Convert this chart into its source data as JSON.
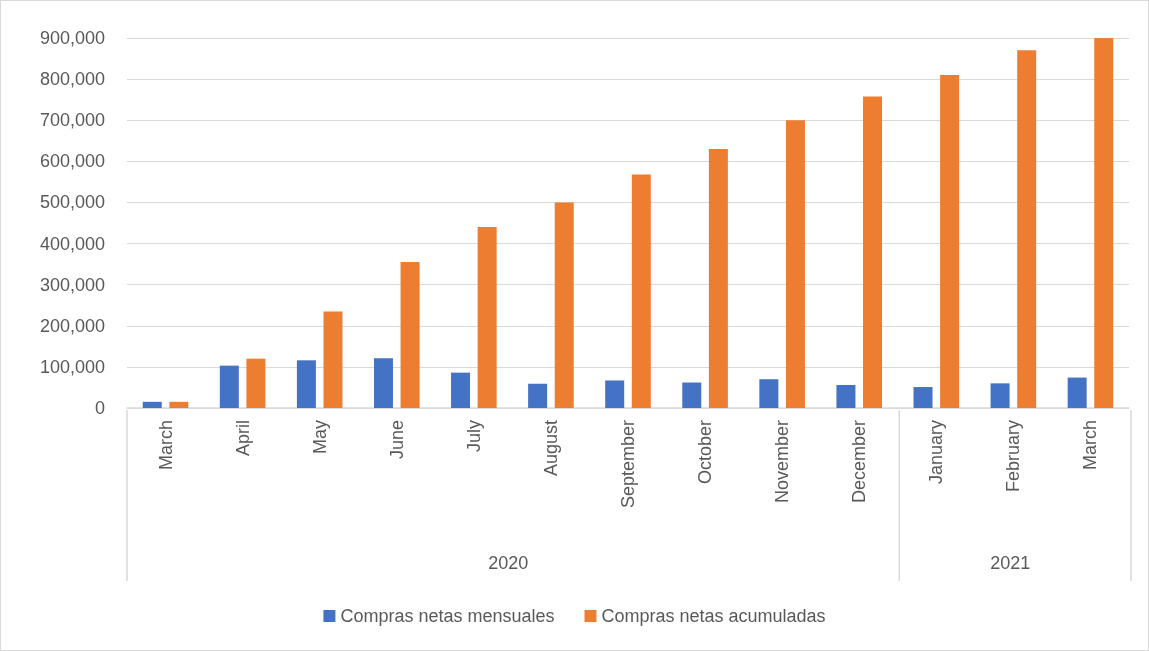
{
  "chart_data": {
    "type": "bar",
    "categories": [
      "March",
      "April",
      "May",
      "June",
      "July",
      "August",
      "September",
      "October",
      "November",
      "December",
      "January",
      "February",
      "March"
    ],
    "series": [
      {
        "name": "Compras netas mensuales",
        "color": "#4472c4",
        "values": [
          15000,
          103000,
          116000,
          121000,
          86000,
          59000,
          67000,
          62000,
          70000,
          56000,
          51000,
          60000,
          74000
        ]
      },
      {
        "name": "Compras netas acumuladas",
        "color": "#ed7d31",
        "values": [
          15000,
          120000,
          235000,
          355000,
          440000,
          500000,
          568000,
          630000,
          700000,
          758000,
          810000,
          870000,
          900000
        ]
      }
    ],
    "ylim": [
      0,
      900000
    ],
    "yticks": [
      0,
      {
        "value": 100000,
        "label": "100,000"
      },
      {
        "value": 200000,
        "label": "200,000"
      },
      {
        "value": 300000,
        "label": "300,000"
      },
      {
        "value": 400000,
        "label": "400,000"
      },
      {
        "value": 500000,
        "label": "500,000"
      },
      {
        "value": 600000,
        "label": "600,000"
      },
      {
        "value": 700000,
        "label": "700,000"
      },
      {
        "value": 800000,
        "label": "800,000"
      },
      {
        "value": 900000,
        "label": "900,000"
      }
    ],
    "grid": "y",
    "legend": "bottom",
    "annotations": [
      "2020",
      "2021"
    ]
  }
}
